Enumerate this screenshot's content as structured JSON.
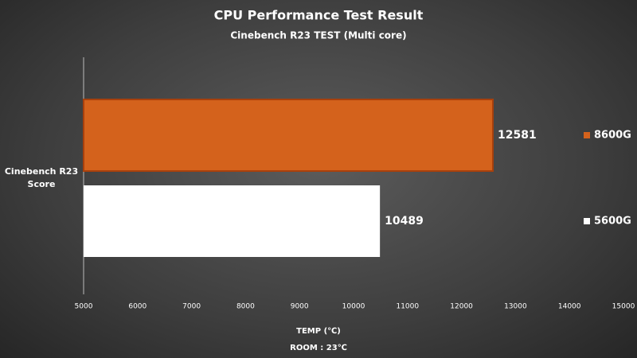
{
  "chart_data": {
    "type": "hbar",
    "title": "CPU Performance Test Result",
    "subtitle": "Cinebench R23 TEST (Multi core)",
    "categories": [
      "Cinebench R23 Score"
    ],
    "series": [
      {
        "name": "8600G",
        "color": "#d4621c",
        "label_color": "#ffff33",
        "values": [
          12581
        ]
      },
      {
        "name": "5600G",
        "color": "#ffffff",
        "label_color": "#ffffff",
        "values": [
          10489
        ]
      }
    ],
    "xlim": [
      5000,
      15000
    ],
    "xticks": [
      5000,
      6000,
      7000,
      8000,
      9000,
      10000,
      11000,
      12000,
      13000,
      14000,
      15000
    ],
    "x_label": "TEMP (℃)",
    "annotation": "ROOM : 23℃",
    "grid": false,
    "legend": "right"
  }
}
